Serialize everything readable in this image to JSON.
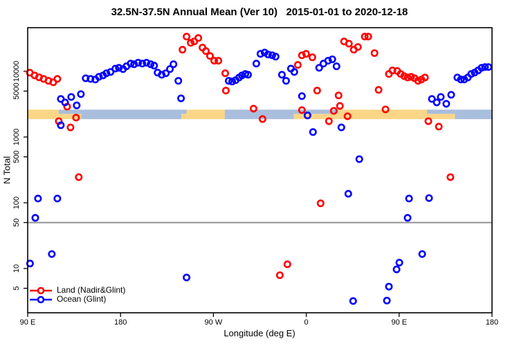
{
  "title": "32.5N-37.5N Annual Mean (Ver 10)   2015-01-01 to 2020-12-18",
  "colors": {
    "land_series": "#ff0000",
    "ocean_series": "#0000ff",
    "band_land": "#fbd687",
    "band_ocean": "#a9bedc",
    "threshold_line": "#909090",
    "frame": "#000000",
    "text": "#000000"
  },
  "legend": {
    "items": [
      {
        "label": "Land (Nadir&Glint)",
        "color": "#ff0000"
      },
      {
        "label": "Ocean (Glint)",
        "color": "#0000ff"
      }
    ]
  },
  "axes": {
    "x": {
      "label": "Longitude (deg E)",
      "note": "axis wraps eastward: 90E → 180 → 90W → 0 → 90E → 180 (continuous 90..540 degE)",
      "range": [
        90,
        540
      ],
      "ticks": [
        {
          "lon": 90,
          "label": "90 E"
        },
        {
          "lon": 180,
          "label": "180"
        },
        {
          "lon": 270,
          "label": "90 W"
        },
        {
          "lon": 360,
          "label": "0"
        },
        {
          "lon": 450,
          "label": "90 E"
        },
        {
          "lon": 540,
          "label": "180"
        }
      ]
    },
    "y": {
      "label": "N Total",
      "scale": "log10",
      "ticks": [
        10000,
        5000,
        1000,
        500,
        100,
        50,
        10,
        5
      ],
      "top_value": 46000,
      "bottom_value": 1.95
    }
  },
  "chart_data": {
    "type": "scatter",
    "title": "32.5N-37.5N Annual Mean (Ver 10)   2015-01-01 to 2020-12-18",
    "xlabel": "Longitude (deg E)",
    "ylabel": "N Total",
    "ylim": [
      1.95,
      46000
    ],
    "xlim": [
      90,
      540
    ],
    "grid": false,
    "legend_position": "bottom-left inside plot",
    "threshold_line": {
      "y": 50,
      "color": "#909090"
    },
    "surface_band": {
      "description": "horizontal land/ocean strip drawn across plot",
      "value_top": 2610,
      "value_bottom": 1870,
      "segments": [
        {
          "lon0": 90,
          "lon1": 120,
          "type": "land"
        },
        {
          "lon0": 120,
          "lon1": 142,
          "type": "mixed"
        },
        {
          "lon0": 142,
          "lon1": 239,
          "type": "ocean"
        },
        {
          "lon0": 239,
          "lon1": 244,
          "type": "mixed"
        },
        {
          "lon0": 244,
          "lon1": 281,
          "type": "land"
        },
        {
          "lon0": 281,
          "lon1": 348,
          "type": "ocean"
        },
        {
          "lon0": 348,
          "lon1": 391,
          "type": "mixed"
        },
        {
          "lon0": 391,
          "lon1": 477,
          "type": "land"
        },
        {
          "lon0": 477,
          "lon1": 504,
          "type": "mixed"
        },
        {
          "lon0": 504,
          "lon1": 540,
          "type": "ocean"
        }
      ]
    },
    "series": [
      {
        "name": "Land (Nadir&Glint)",
        "color": "#ff0000",
        "marker": "open-circle",
        "points": [
          [
            92.0,
            9530
          ],
          [
            96.7,
            8650
          ],
          [
            101.0,
            8100
          ],
          [
            105.4,
            7660
          ],
          [
            110.1,
            7150
          ],
          [
            114.8,
            6800
          ],
          [
            118.8,
            7660
          ],
          [
            120.1,
            1740
          ],
          [
            128.2,
            2900
          ],
          [
            131.5,
            1400
          ],
          [
            136.9,
            1970
          ],
          [
            139.5,
            245
          ],
          [
            240.0,
            21300
          ],
          [
            244.0,
            33700
          ],
          [
            248.0,
            27100
          ],
          [
            251.4,
            28400
          ],
          [
            255.4,
            32100
          ],
          [
            259.4,
            22900
          ],
          [
            262.7,
            20300
          ],
          [
            266.7,
            17100
          ],
          [
            270.8,
            14500
          ],
          [
            274.8,
            14500
          ],
          [
            281.5,
            9330
          ],
          [
            282.1,
            5080
          ],
          [
            308.9,
            2700
          ],
          [
            317.6,
            1880
          ],
          [
            334.4,
            7.9
          ],
          [
            341.7,
            11.6
          ],
          [
            351.8,
            12500
          ],
          [
            355.8,
            17500
          ],
          [
            355.8,
            2570
          ],
          [
            359.8,
            18400
          ],
          [
            365.9,
            16300
          ],
          [
            370.5,
            5080
          ],
          [
            373.9,
            98
          ],
          [
            381.9,
            1740
          ],
          [
            386.6,
            2500
          ],
          [
            391.3,
            4290
          ],
          [
            392.6,
            2970
          ],
          [
            396.6,
            28400
          ],
          [
            400.0,
            2070
          ],
          [
            401.3,
            26300
          ],
          [
            406.0,
            21300
          ],
          [
            410.0,
            23400
          ],
          [
            416.7,
            33700
          ],
          [
            420.1,
            33700
          ],
          [
            426.1,
            18900
          ],
          [
            430.1,
            5210
          ],
          [
            436.8,
            2630
          ],
          [
            440.1,
            9100
          ],
          [
            443.5,
            10300
          ],
          [
            448.2,
            10100
          ],
          [
            451.5,
            9100
          ],
          [
            454.9,
            8430
          ],
          [
            458.2,
            8040
          ],
          [
            461.6,
            8230
          ],
          [
            464.9,
            7850
          ],
          [
            468.3,
            7150
          ],
          [
            471.6,
            7490
          ],
          [
            475.0,
            8040
          ],
          [
            478.3,
            1740
          ],
          [
            488.4,
            1440
          ],
          [
            499.7,
            245
          ]
        ]
      },
      {
        "name": "Ocean (Glint)",
        "color": "#0000ff",
        "marker": "open-circle",
        "points": [
          [
            92.3,
            11.9
          ],
          [
            97.4,
            59
          ],
          [
            100.0,
            116
          ],
          [
            113.4,
            16.6
          ],
          [
            118.8,
            116
          ],
          [
            122.1,
            3790
          ],
          [
            122.1,
            1510
          ],
          [
            126.2,
            3360
          ],
          [
            132.2,
            4070
          ],
          [
            137.5,
            3030
          ],
          [
            141.6,
            4490
          ],
          [
            146.2,
            7830
          ],
          [
            150.9,
            7660
          ],
          [
            155.6,
            7490
          ],
          [
            159.0,
            8230
          ],
          [
            163.0,
            8650
          ],
          [
            166.3,
            9330
          ],
          [
            170.3,
            9760
          ],
          [
            175.0,
            11000
          ],
          [
            178.4,
            11300
          ],
          [
            182.4,
            10800
          ],
          [
            185.7,
            11900
          ],
          [
            189.8,
            13100
          ],
          [
            193.1,
            12800
          ],
          [
            197.1,
            13500
          ],
          [
            201.1,
            13100
          ],
          [
            205.2,
            13500
          ],
          [
            209.2,
            12800
          ],
          [
            212.5,
            12200
          ],
          [
            215.9,
            9540
          ],
          [
            219.9,
            8850
          ],
          [
            223.9,
            9330
          ],
          [
            227.9,
            10800
          ],
          [
            231.3,
            12800
          ],
          [
            236.0,
            7150
          ],
          [
            238.6,
            3880
          ],
          [
            244.0,
            7.3
          ],
          [
            284.8,
            7150
          ],
          [
            288.2,
            6980
          ],
          [
            291.5,
            7320
          ],
          [
            294.9,
            8040
          ],
          [
            297.6,
            8650
          ],
          [
            300.9,
            9100
          ],
          [
            303.6,
            8850
          ],
          [
            311.6,
            13100
          ],
          [
            315.6,
            18400
          ],
          [
            319.6,
            19300
          ],
          [
            323.0,
            18000
          ],
          [
            327.0,
            17500
          ],
          [
            330.3,
            16700
          ],
          [
            336.4,
            8850
          ],
          [
            340.4,
            7150
          ],
          [
            345.1,
            11000
          ],
          [
            348.4,
            9760
          ],
          [
            355.8,
            4190
          ],
          [
            361.2,
            2130
          ],
          [
            366.5,
            1190
          ],
          [
            372.5,
            11300
          ],
          [
            376.6,
            13100
          ],
          [
            381.2,
            14500
          ],
          [
            385.2,
            15200
          ],
          [
            389.3,
            11900
          ],
          [
            394.0,
            1400
          ],
          [
            400.7,
            137
          ],
          [
            405.4,
            3.2
          ],
          [
            411.4,
            460
          ],
          [
            438.1,
            3.25
          ],
          [
            440.1,
            5.3
          ],
          [
            447.5,
            9.7
          ],
          [
            450.2,
            12.3
          ],
          [
            458.2,
            59
          ],
          [
            459.6,
            116
          ],
          [
            472.3,
            16.6
          ],
          [
            479.0,
            118
          ],
          [
            481.7,
            3790
          ],
          [
            486.4,
            3360
          ],
          [
            490.4,
            4070
          ],
          [
            495.7,
            3200
          ],
          [
            500.4,
            4390
          ],
          [
            506.4,
            8040
          ],
          [
            509.8,
            7490
          ],
          [
            513.1,
            7490
          ],
          [
            516.5,
            8040
          ],
          [
            519.8,
            9100
          ],
          [
            523.2,
            9540
          ],
          [
            526.5,
            10300
          ],
          [
            529.9,
            11300
          ],
          [
            533.2,
            11600
          ],
          [
            536.6,
            11600
          ]
        ]
      }
    ]
  }
}
